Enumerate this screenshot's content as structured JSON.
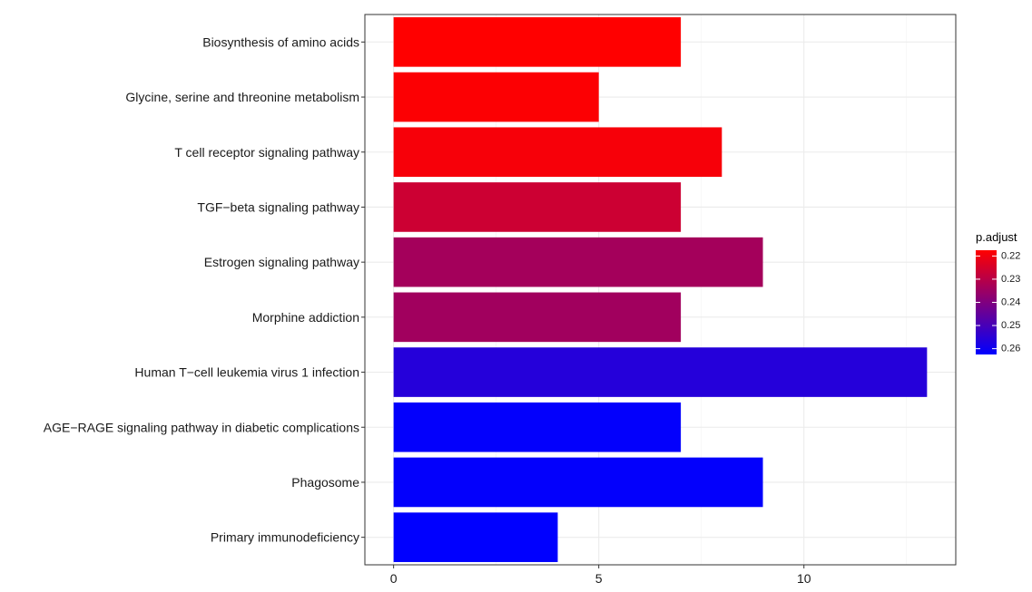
{
  "chart_data": {
    "type": "bar",
    "orientation": "horizontal",
    "categories": [
      "Biosynthesis of amino acids",
      "Glycine, serine and threonine metabolism",
      "T cell receptor signaling pathway",
      "TGF−beta signaling pathway",
      "Estrogen signaling pathway",
      "Morphine addiction",
      "Human T−cell leukemia virus 1 infection",
      "AGE−RAGE signaling pathway in diabetic complications",
      "Phagosome",
      "Primary immunodeficiency"
    ],
    "values": [
      7,
      5,
      8,
      7,
      9,
      7,
      13,
      7,
      9,
      4
    ],
    "p_adjust": [
      0.2175,
      0.218,
      0.219,
      0.2265,
      0.2335,
      0.234,
      0.256,
      0.262,
      0.262,
      0.2625
    ],
    "xlim": [
      -0.7,
      13.7
    ],
    "x_ticks": [
      0,
      5,
      10
    ],
    "x_tick_labels": [
      "0",
      "5",
      "10"
    ],
    "title": "",
    "xlabel": "",
    "ylabel": "",
    "grid": true,
    "legend": {
      "title": "p.adjust",
      "position": "right",
      "low_color": "#ff0000",
      "high_color": "#0000ff",
      "range": [
        0.2175,
        0.2625
      ],
      "ticks": [
        0.22,
        0.23,
        0.24,
        0.25,
        0.26
      ],
      "tick_labels": [
        "0.22",
        "0.23",
        "0.24",
        "0.25",
        "0.26"
      ]
    }
  }
}
